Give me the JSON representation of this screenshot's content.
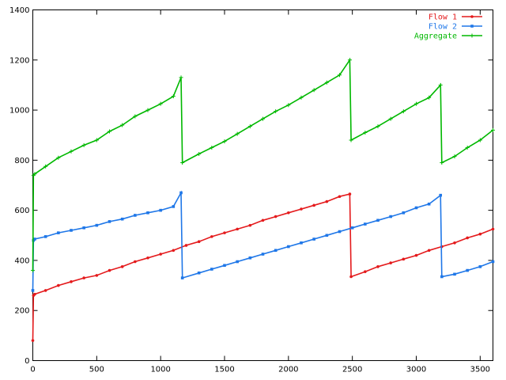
{
  "chart_data": {
    "type": "line",
    "title": "",
    "xlabel": "",
    "ylabel": "",
    "xlim": [
      0,
      3600
    ],
    "ylim": [
      0,
      1400
    ],
    "xticks": [
      0,
      500,
      1000,
      1500,
      2000,
      2500,
      3000,
      3500
    ],
    "yticks": [
      0,
      200,
      400,
      600,
      800,
      1000,
      1200,
      1400
    ],
    "xtick_labels": [
      "0",
      "500",
      "1000",
      "1500",
      "2000",
      "2500",
      "3000",
      "3500"
    ],
    "ytick_labels": [
      "0",
      "200",
      "400",
      "600",
      "800",
      "1000",
      "1200",
      "1400"
    ],
    "grid": false,
    "legend_position": "top-right",
    "series": [
      {
        "name": "Flow 1",
        "color": "#e41a1c",
        "marker": "circle",
        "x": [
          0,
          5,
          15,
          100,
          200,
          300,
          400,
          500,
          600,
          700,
          800,
          900,
          1000,
          1100,
          1200,
          1300,
          1400,
          1500,
          1600,
          1700,
          1800,
          1900,
          2000,
          2100,
          2200,
          2300,
          2400,
          2480,
          2490,
          2600,
          2700,
          2800,
          2900,
          3000,
          3100,
          3200,
          3300,
          3400,
          3500,
          3600
        ],
        "y": [
          80,
          260,
          265,
          280,
          300,
          315,
          330,
          340,
          360,
          375,
          395,
          410,
          425,
          440,
          460,
          475,
          495,
          510,
          525,
          540,
          560,
          575,
          590,
          605,
          620,
          635,
          655,
          665,
          335,
          355,
          375,
          390,
          405,
          420,
          440,
          455,
          470,
          490,
          505,
          525
        ]
      },
      {
        "name": "Flow 2",
        "color": "#1f77e8",
        "marker": "square",
        "x": [
          0,
          5,
          15,
          100,
          200,
          300,
          400,
          500,
          600,
          700,
          800,
          900,
          1000,
          1100,
          1160,
          1170,
          1300,
          1400,
          1500,
          1600,
          1700,
          1800,
          1900,
          2000,
          2100,
          2200,
          2300,
          2400,
          2500,
          2600,
          2700,
          2800,
          2900,
          3000,
          3100,
          3190,
          3200,
          3300,
          3400,
          3500,
          3600
        ],
        "y": [
          280,
          480,
          485,
          495,
          510,
          520,
          530,
          540,
          555,
          565,
          580,
          590,
          600,
          615,
          670,
          330,
          350,
          365,
          380,
          395,
          410,
          425,
          440,
          455,
          470,
          485,
          500,
          515,
          530,
          545,
          560,
          575,
          590,
          610,
          625,
          660,
          335,
          345,
          360,
          375,
          395
        ]
      },
      {
        "name": "Aggregate",
        "color": "#00b800",
        "marker": "plus",
        "x": [
          0,
          5,
          15,
          100,
          200,
          300,
          400,
          500,
          600,
          700,
          800,
          900,
          1000,
          1100,
          1160,
          1170,
          1300,
          1400,
          1500,
          1600,
          1700,
          1800,
          1900,
          2000,
          2100,
          2200,
          2300,
          2400,
          2480,
          2490,
          2600,
          2700,
          2800,
          2900,
          3000,
          3100,
          3190,
          3200,
          3300,
          3400,
          3500,
          3600
        ],
        "y": [
          360,
          740,
          745,
          775,
          810,
          835,
          860,
          880,
          915,
          940,
          975,
          1000,
          1025,
          1055,
          1130,
          790,
          825,
          850,
          875,
          905,
          935,
          965,
          995,
          1020,
          1050,
          1080,
          1110,
          1140,
          1200,
          880,
          910,
          935,
          965,
          995,
          1025,
          1050,
          1100,
          790,
          815,
          850,
          880,
          920
        ]
      }
    ]
  }
}
